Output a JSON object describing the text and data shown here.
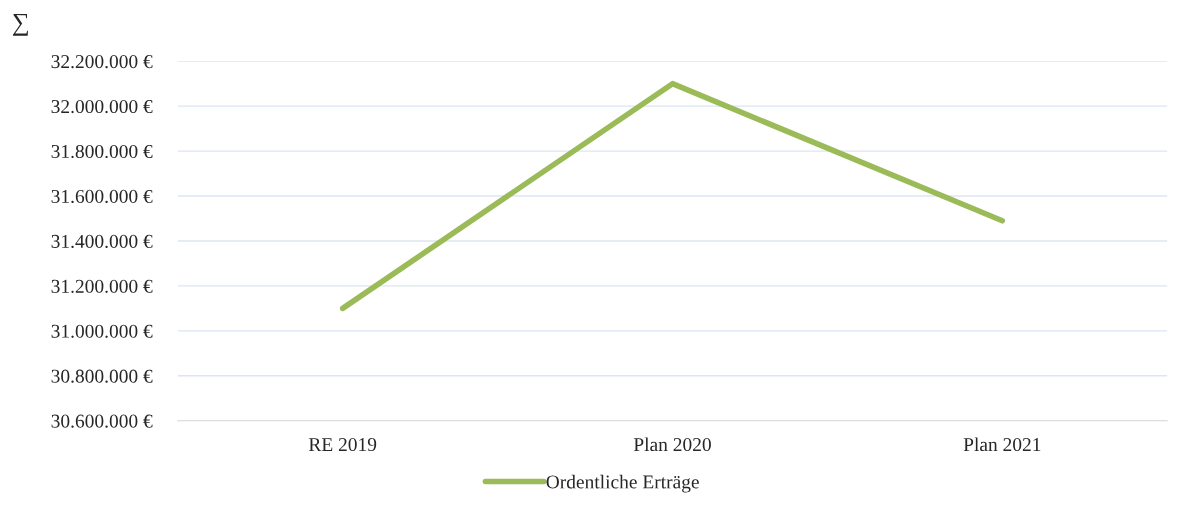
{
  "chart_data": {
    "type": "line",
    "ylabel": "∑",
    "categories": [
      "RE 2019",
      "Plan 2020",
      "Plan 2021"
    ],
    "series": [
      {
        "name": "Ordentliche Erträge",
        "color": "#9bbb59",
        "values": [
          31100000,
          32100000,
          31490000
        ]
      }
    ],
    "ylim": [
      30600000,
      32200000
    ],
    "yticks": [
      {
        "value": 30600000,
        "label": "30.600.000 €"
      },
      {
        "value": 30800000,
        "label": "30.800.000 €"
      },
      {
        "value": 31000000,
        "label": "31.000.000 €"
      },
      {
        "value": 31200000,
        "label": "31.200.000 €"
      },
      {
        "value": 31400000,
        "label": "31.400.000 €"
      },
      {
        "value": 31600000,
        "label": "31.600.000 €"
      },
      {
        "value": 31800000,
        "label": "31.800.000 €"
      },
      {
        "value": 32000000,
        "label": "32.000.000 €"
      },
      {
        "value": 32200000,
        "label": "32.200.000 €"
      }
    ],
    "grid": "y",
    "legend": "bottom",
    "marker": "none",
    "line_style": "solid"
  }
}
